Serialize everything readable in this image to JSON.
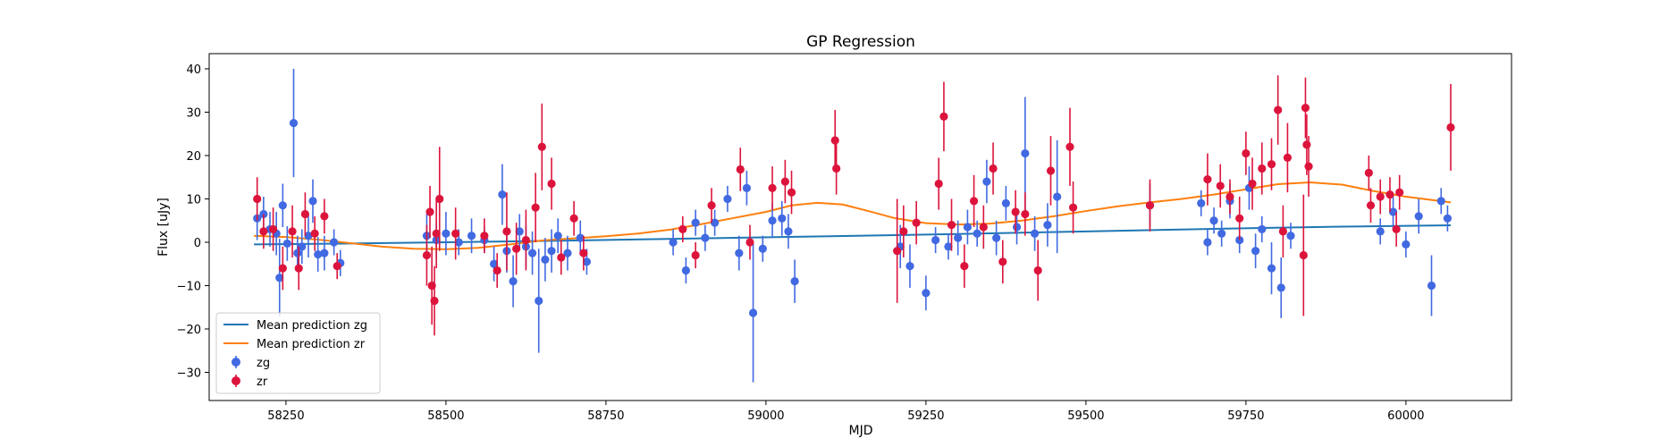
{
  "chart_data": {
    "type": "scatter",
    "title": "GP Regression",
    "xlabel": "MJD",
    "ylabel": "Flux [uJy]",
    "xlim": [
      58130,
      60165
    ],
    "ylim": [
      -36.5,
      43.5
    ],
    "xticks": [
      58250,
      58500,
      58750,
      59000,
      59250,
      59500,
      59750,
      60000
    ],
    "yticks": [
      -30,
      -20,
      -10,
      0,
      10,
      20,
      30,
      40
    ],
    "grid": false,
    "legend": "lower-left",
    "series": [
      {
        "name": "Mean prediction zg",
        "kind": "line",
        "color": "#1f77b4",
        "x": [
          58200,
          58350,
          58500,
          58700,
          58900,
          59100,
          59300,
          59500,
          59700,
          59900,
          60070
        ],
        "y": [
          -0.5,
          -0.3,
          0.0,
          0.4,
          0.9,
          1.4,
          1.9,
          2.5,
          3.1,
          3.6,
          3.9
        ]
      },
      {
        "name": "Mean prediction zr",
        "kind": "line",
        "color": "#ff7f0e",
        "x": [
          58200,
          58250,
          58300,
          58350,
          58400,
          58450,
          58500,
          58550,
          58600,
          58650,
          58700,
          58750,
          58800,
          58850,
          58900,
          58950,
          59000,
          59040,
          59080,
          59120,
          59160,
          59200,
          59250,
          59300,
          59350,
          59400,
          59450,
          59500,
          59550,
          59600,
          59650,
          59700,
          59750,
          59800,
          59850,
          59900,
          59950,
          60000,
          60070
        ],
        "y": [
          1.5,
          1.2,
          0.6,
          -0.2,
          -1.0,
          -1.5,
          -1.6,
          -1.3,
          -0.5,
          0.4,
          0.9,
          1.4,
          2.0,
          2.9,
          4.2,
          5.6,
          7.0,
          8.5,
          9.1,
          8.7,
          7.2,
          5.6,
          4.4,
          4.1,
          4.3,
          5.0,
          6.0,
          7.2,
          8.3,
          9.2,
          10.0,
          11.0,
          12.2,
          13.4,
          13.8,
          13.3,
          11.8,
          10.5,
          9.2
        ]
      },
      {
        "name": "zg",
        "kind": "errorbar",
        "color": "#4169e1",
        "x": [
          58205,
          58215,
          58225,
          58235,
          58240,
          58245,
          58252,
          58262,
          58268,
          58275,
          58285,
          58292,
          58300,
          58310,
          58325,
          58335,
          58470,
          58485,
          58500,
          58520,
          58540,
          58560,
          58575,
          58588,
          58595,
          58605,
          58615,
          58625,
          58635,
          58645,
          58655,
          58665,
          58675,
          58690,
          58710,
          58720,
          58855,
          58875,
          58890,
          58905,
          58920,
          58940,
          58958,
          58970,
          58980,
          58995,
          59010,
          59025,
          59035,
          59045,
          59210,
          59225,
          59250,
          59265,
          59285,
          59300,
          59315,
          59330,
          59345,
          59360,
          59375,
          59392,
          59405,
          59420,
          59440,
          59455,
          59600,
          59680,
          59690,
          59700,
          59712,
          59725,
          59740,
          59755,
          59765,
          59775,
          59790,
          59805,
          59820,
          59960,
          59980,
          60000,
          60020,
          60040,
          60055,
          60065
        ],
        "y": [
          5.5,
          6.5,
          3.0,
          2.0,
          -8.2,
          8.5,
          -0.3,
          27.5,
          -2.5,
          -1.0,
          1.5,
          9.5,
          -2.8,
          -2.5,
          0.0,
          -4.8,
          1.5,
          0.5,
          2.0,
          0.0,
          1.5,
          0.5,
          -5.0,
          11.0,
          -2.0,
          -9.0,
          2.5,
          -1.0,
          -2.5,
          -13.5,
          -4.0,
          -2.0,
          1.5,
          -2.5,
          1.0,
          -4.5,
          0.0,
          -6.5,
          4.5,
          1.0,
          4.5,
          10.0,
          -2.5,
          12.5,
          -16.3,
          -1.5,
          5.0,
          5.5,
          2.5,
          -9.0,
          -1.0,
          -5.5,
          -11.7,
          0.5,
          -1.0,
          1.0,
          3.5,
          2.0,
          14.0,
          1.0,
          9.0,
          3.5,
          20.5,
          2.0,
          4.0,
          10.5,
          8.5,
          9.0,
          0.0,
          5.0,
          2.0,
          9.5,
          0.5,
          12.5,
          -2.0,
          3.0,
          -6.0,
          -10.5,
          1.5,
          2.5,
          7.0,
          -0.5,
          6.0,
          -10.0,
          9.5,
          5.5
        ],
        "err": [
          5,
          4,
          4,
          5,
          9,
          5,
          4,
          12.5,
          4,
          4,
          5,
          5,
          4,
          4,
          3,
          3,
          5,
          4,
          5,
          3,
          4,
          3,
          4,
          7,
          5,
          6,
          4,
          5,
          5,
          12,
          5,
          5,
          4,
          4,
          4,
          3,
          3,
          3,
          3,
          3,
          3,
          3,
          4,
          4,
          16,
          3,
          4,
          4,
          4,
          5,
          5,
          5,
          4,
          3,
          3,
          4,
          4,
          3,
          5,
          4,
          4,
          4,
          13,
          4,
          5,
          13,
          5,
          3,
          3,
          3,
          3,
          4,
          3,
          5,
          4,
          3,
          6,
          7,
          3,
          3,
          4,
          3,
          4,
          7,
          3,
          3
        ]
      },
      {
        "name": "zr",
        "kind": "errorbar",
        "color": "#dc143c",
        "x": [
          58205,
          58215,
          58230,
          58245,
          58260,
          58270,
          58280,
          58295,
          58310,
          58330,
          58470,
          58475,
          58478,
          58482,
          58485,
          58490,
          58515,
          58560,
          58580,
          58595,
          58610,
          58625,
          58640,
          58650,
          58665,
          58680,
          58700,
          58715,
          58870,
          58890,
          58915,
          58960,
          58975,
          59010,
          59030,
          59040,
          59108,
          59110,
          59205,
          59215,
          59235,
          59270,
          59278,
          59290,
          59310,
          59325,
          59340,
          59355,
          59370,
          59390,
          59405,
          59425,
          59445,
          59475,
          59480,
          59600,
          59690,
          59710,
          59725,
          59740,
          59750,
          59760,
          59775,
          59790,
          59800,
          59808,
          59815,
          59840,
          59843,
          59845,
          59848,
          59942,
          59945,
          59960,
          59975,
          59985,
          59990,
          60070
        ],
        "y": [
          10.0,
          2.5,
          3.0,
          -6.0,
          2.5,
          -6.0,
          6.5,
          2.0,
          6.0,
          -5.5,
          -3.0,
          7.0,
          -10.0,
          -13.5,
          2.0,
          10.0,
          2.0,
          1.5,
          -6.5,
          2.5,
          -1.5,
          0.5,
          8.0,
          22.0,
          13.5,
          -3.5,
          5.5,
          -2.5,
          3.0,
          -3.0,
          8.5,
          16.8,
          0.0,
          12.5,
          14.0,
          11.5,
          23.5,
          17.0,
          -2.0,
          2.5,
          4.5,
          13.5,
          29.0,
          4.0,
          -5.5,
          9.5,
          3.5,
          17.0,
          -4.5,
          7.0,
          6.5,
          -6.5,
          16.5,
          22.0,
          8.0,
          8.5,
          14.5,
          13.0,
          10.5,
          5.5,
          20.5,
          13.5,
          17.0,
          18.0,
          30.5,
          2.5,
          19.5,
          -3.0,
          31.0,
          22.5,
          17.5,
          16.0,
          8.5,
          10.5,
          11.0,
          3.0,
          11.5,
          26.5
        ],
        "err": [
          5,
          4,
          5,
          5,
          6,
          5,
          5,
          4,
          4,
          3,
          7,
          6,
          9,
          8,
          8,
          12,
          6,
          4,
          4,
          9,
          6,
          7,
          8,
          10,
          6,
          4,
          4,
          4,
          3,
          3,
          4,
          5,
          4,
          5,
          5,
          5,
          7,
          6,
          12,
          6,
          5,
          6,
          8,
          6,
          5,
          6,
          5,
          6,
          5,
          5,
          5,
          7,
          8,
          9,
          6,
          6,
          6,
          5,
          4,
          5,
          5,
          6,
          6,
          6,
          8,
          6,
          8,
          14,
          7,
          7,
          7,
          4,
          4,
          4,
          4,
          4,
          4,
          10
        ]
      }
    ]
  }
}
